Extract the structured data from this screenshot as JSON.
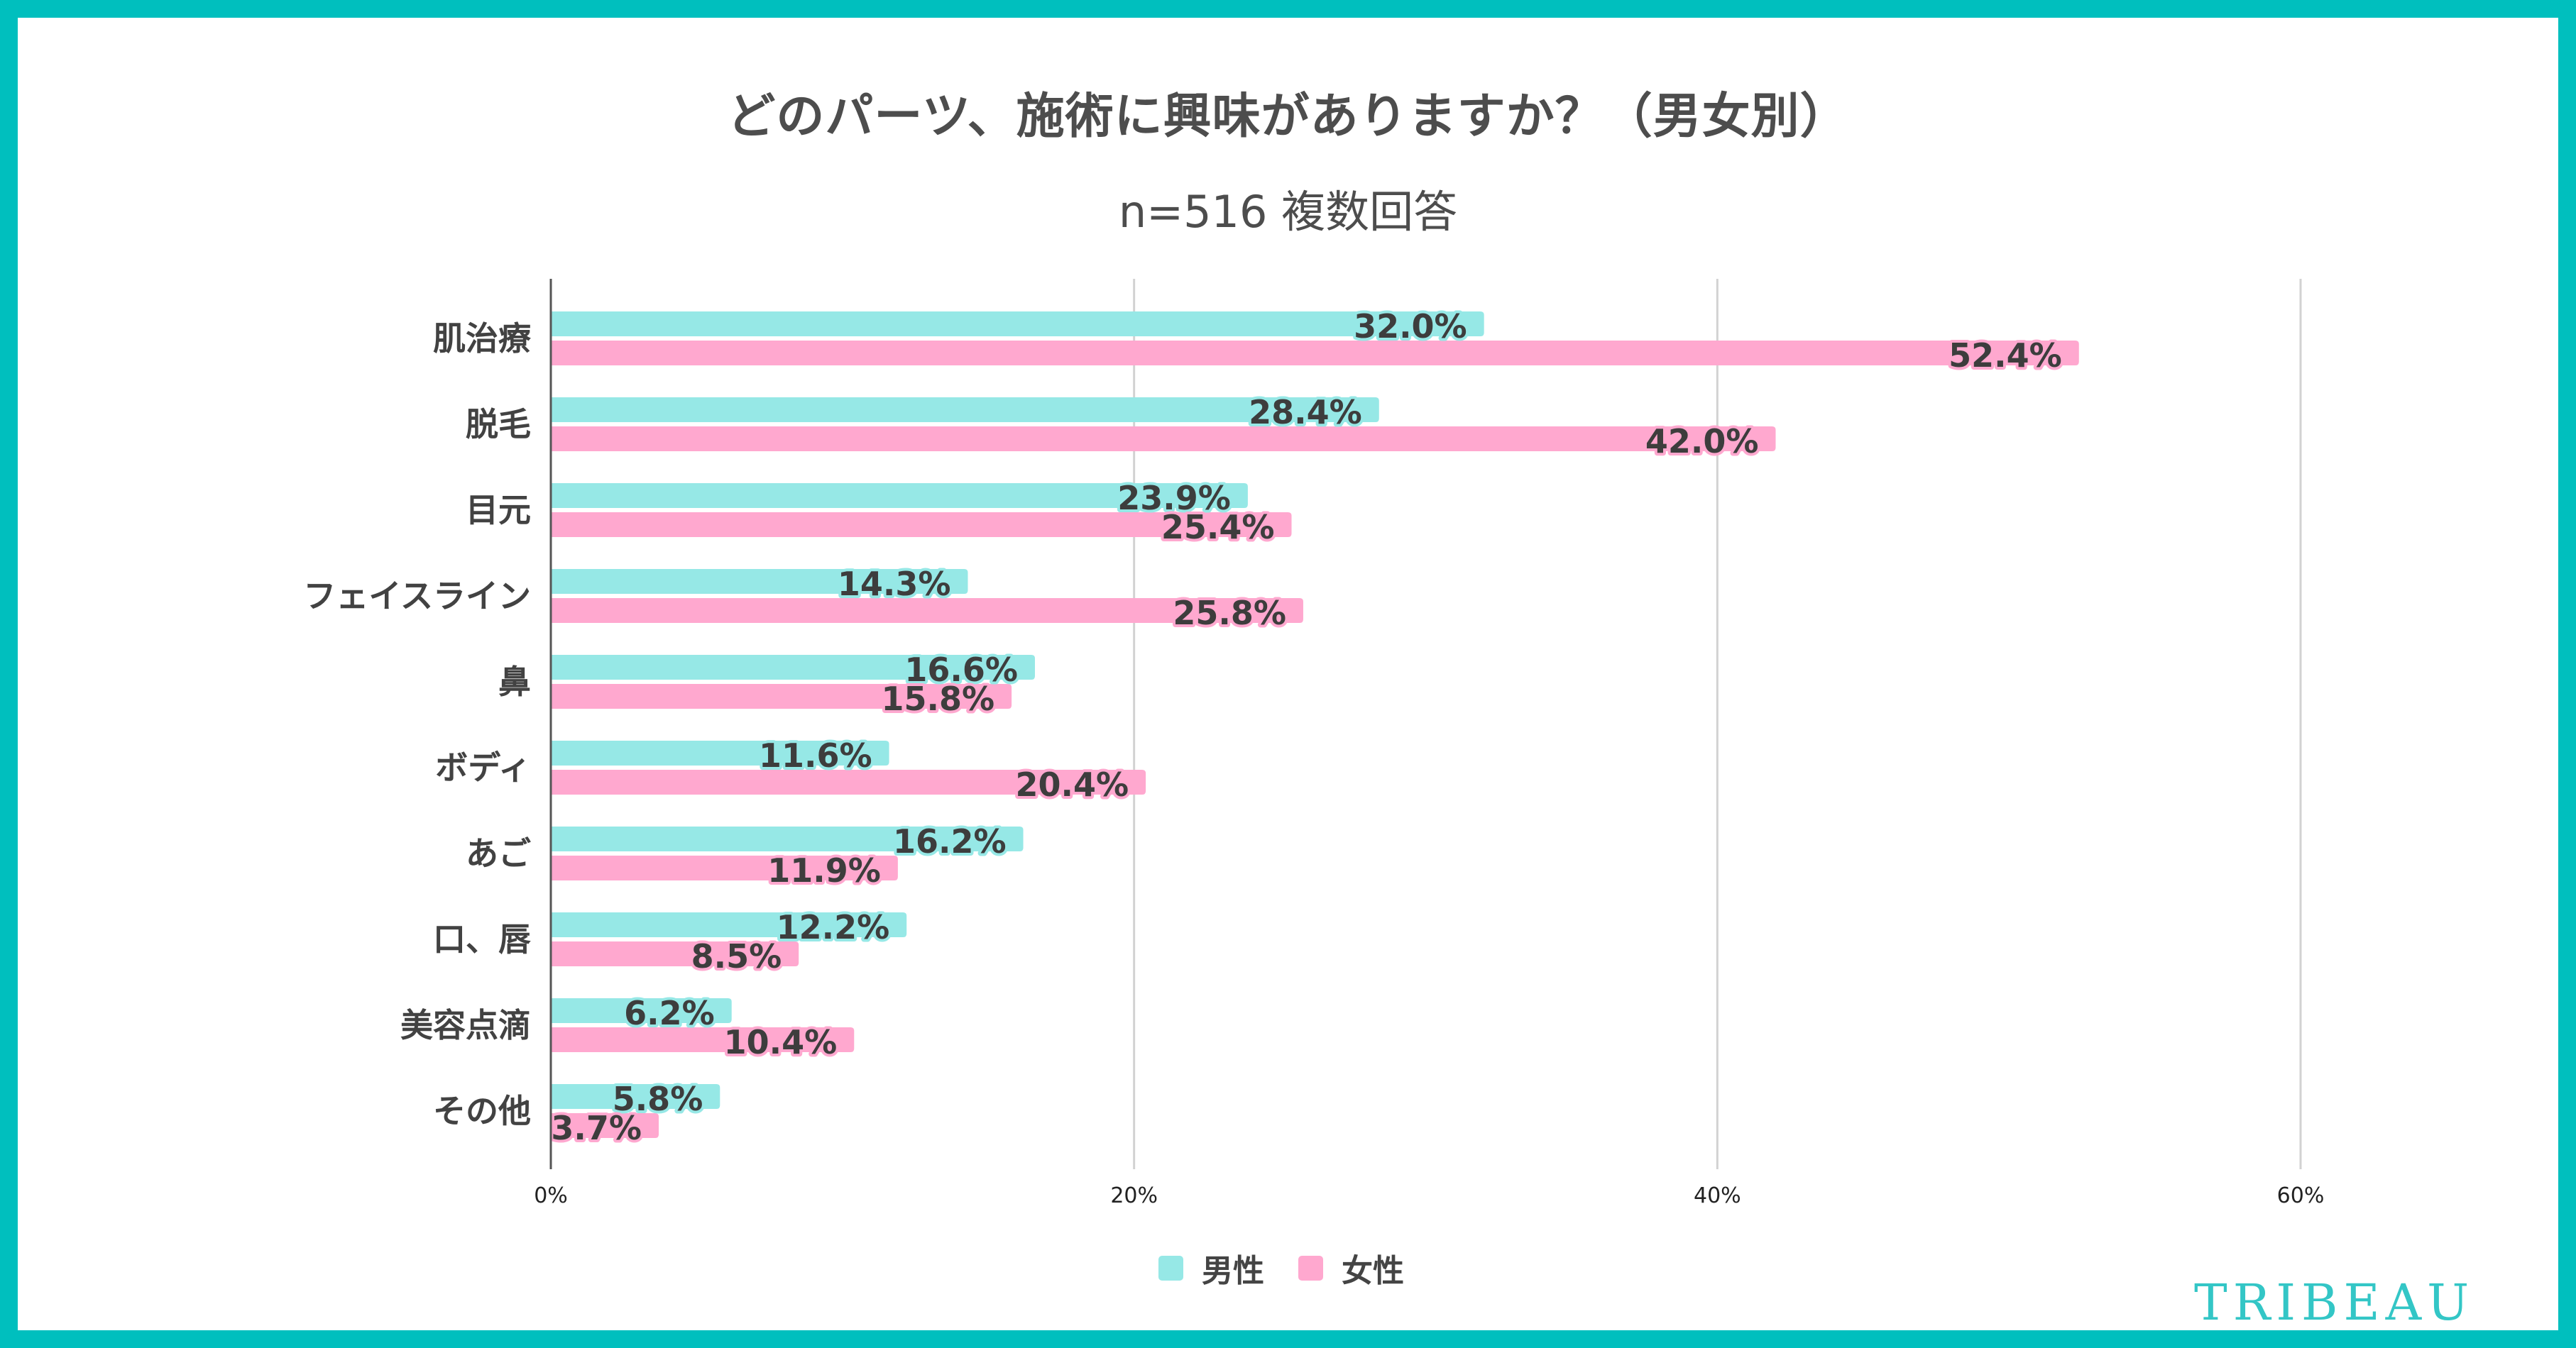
{
  "chart_data": {
    "type": "bar",
    "orientation": "horizontal",
    "title": "どのパーツ、施術に興味がありますか？（男女別）",
    "subtitle": "n=516 複数回答",
    "xlabel": "",
    "ylabel": "",
    "xlim": [
      0,
      60
    ],
    "xticks": [
      0,
      20,
      40,
      60
    ],
    "xtick_labels": [
      "0%",
      "20%",
      "40%",
      "60%"
    ],
    "grid": true,
    "legend_position": "bottom",
    "categories": [
      "肌治療",
      "脱毛",
      "目元",
      "フェイスライン",
      "鼻",
      "ボディ",
      "あご",
      "口、唇",
      "美容点滴",
      "その他"
    ],
    "series": [
      {
        "name": "男性",
        "color": "#96E8E6",
        "halo": "#96E8E6",
        "values": [
          32.0,
          28.4,
          23.9,
          14.3,
          16.6,
          11.6,
          16.2,
          12.2,
          6.2,
          5.8
        ],
        "labels": [
          "32.0%",
          "28.4%",
          "23.9%",
          "14.3%",
          "16.6%",
          "11.6%",
          "16.2%",
          "12.2%",
          "6.2%",
          "5.8%"
        ]
      },
      {
        "name": "女性",
        "color": "#FFA8CF",
        "halo": "#FFA8CF",
        "values": [
          52.4,
          42.0,
          25.4,
          25.8,
          15.8,
          20.4,
          11.9,
          8.5,
          10.4,
          3.7
        ],
        "labels": [
          "52.4%",
          "42.0%",
          "25.4%",
          "25.8%",
          "15.8%",
          "20.4%",
          "11.9%",
          "8.5%",
          "10.4%",
          "3.7%"
        ]
      }
    ]
  },
  "legend": {
    "items": [
      {
        "label": "男性",
        "color": "#96E8E6"
      },
      {
        "label": "女性",
        "color": "#FFA8CF"
      }
    ]
  },
  "brand": {
    "logo_text": "TRIBEAU",
    "frame_color": "#00BFBE",
    "logo_color": "#33C6C6"
  }
}
